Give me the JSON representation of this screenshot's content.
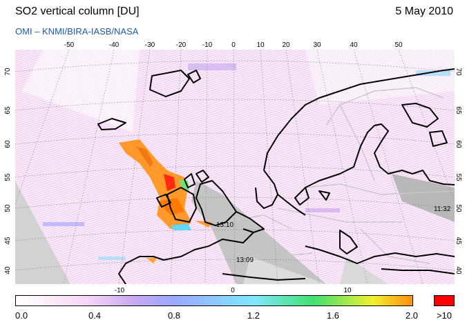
{
  "header": {
    "title": "SO2 vertical column [DU]",
    "date": "5 May 2010",
    "credit": "OMI   –   KNMI/BIRA-IASB/NASA"
  },
  "map": {
    "top_lon_ticks": [
      "-50",
      "-40",
      "-30",
      "-20",
      "-10",
      "0",
      "10",
      "20",
      "30",
      "40",
      "50"
    ],
    "bottom_lon_ticks": [
      "-10",
      "0",
      "10"
    ],
    "left_lat_ticks": [
      "70",
      "65",
      "60",
      "55",
      "50",
      "45",
      "40"
    ],
    "right_lat_ticks": [
      "70",
      "65",
      "60",
      "55",
      "50",
      "45",
      "40"
    ],
    "orbit_time_labels": [
      "13:10",
      "13:09",
      "11:32"
    ]
  },
  "colorbar": {
    "tick_labels": [
      "0.0",
      "0.4",
      "0.8",
      "1.2",
      "1.6",
      "2.0"
    ],
    "overflow_label": ">10",
    "overflow_color": "#ff0000"
  }
}
